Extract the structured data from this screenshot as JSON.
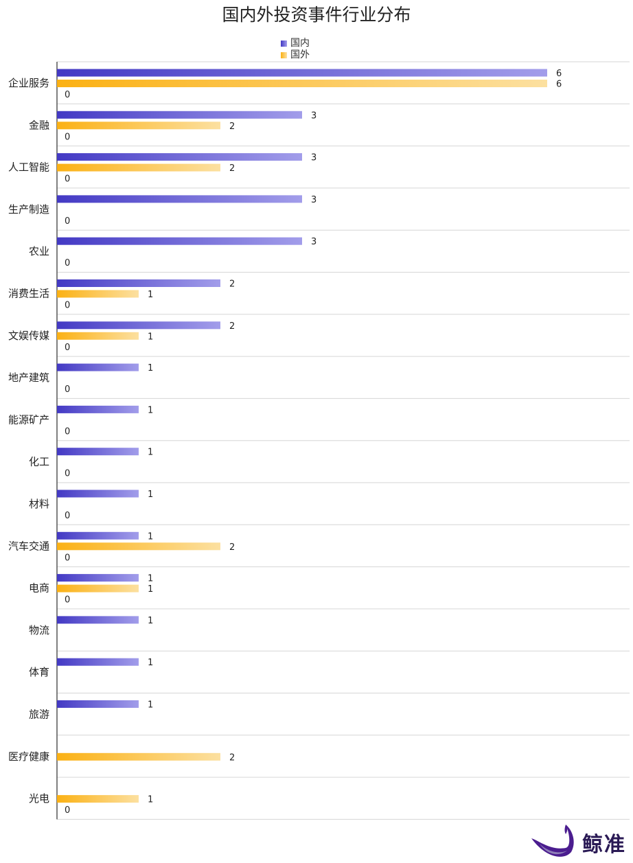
{
  "chart_data": {
    "type": "bar",
    "orientation": "horizontal",
    "title": "国内外投资事件行业分布",
    "legend_position": "top-center",
    "colors": {
      "domestic_start": "#4339C4",
      "domestic_end": "#A29DEA",
      "foreign_start": "#FBB114",
      "foreign_end": "#FCE0A0"
    },
    "categories": [
      "企业服务",
      "金融",
      "人工智能",
      "生产制造",
      "农业",
      "消费生活",
      "文娱传媒",
      "地产建筑",
      "能源矿产",
      "化工",
      "材料",
      "汽车交通",
      "电商",
      "物流",
      "体育",
      "旅游",
      "医疗健康",
      "光电"
    ],
    "series": [
      {
        "name": "国内",
        "values": [
          6,
          3,
          3,
          3,
          3,
          2,
          2,
          1,
          1,
          1,
          1,
          1,
          1,
          1,
          1,
          1,
          null,
          null
        ]
      },
      {
        "name": "国外",
        "values": [
          6,
          2,
          2,
          null,
          null,
          1,
          1,
          null,
          null,
          null,
          null,
          2,
          1,
          null,
          null,
          null,
          2,
          1
        ]
      }
    ],
    "extra_labels": [
      "0",
      "0",
      "0",
      "0",
      "0",
      "0",
      "0",
      "0",
      "0",
      "0",
      "0",
      "0",
      "0",
      null,
      null,
      null,
      null,
      "0"
    ],
    "xlim": [
      0,
      7
    ],
    "grid": "horizontal separators"
  },
  "brand": {
    "name": "鲸准",
    "icon": "whale-logo-icon"
  }
}
